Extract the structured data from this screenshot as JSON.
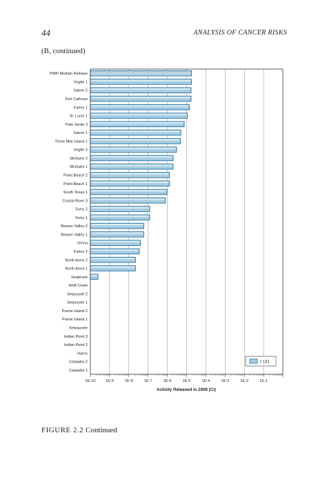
{
  "page": {
    "page_number": "44",
    "running_head": "ANALYSIS OF CANCER RISKS",
    "panel_label": "(B, continued)",
    "caption_label": "FIGURE 2.2",
    "caption_text": "Continued"
  },
  "chart_data": {
    "type": "bar",
    "orientation": "horizontal",
    "xscale": "log",
    "xlabel": "Activity Released in 2008 (Ci)",
    "xlim": [
      1e-10,
      1
    ],
    "xticks": [
      "1E-10",
      "1E-9",
      "1E-8",
      "1E-7",
      "1E-6",
      "1E-5",
      "1E-4",
      "1E-3",
      "1E-2",
      "1E-1"
    ],
    "grid": "vertical-major",
    "legend": {
      "position": "bottom-right",
      "label": "I-131"
    },
    "colors": {
      "bar_fill": "#a8cde3",
      "bar_stroke": "#1f6fa0",
      "bar_highlight": "#d8ebf5",
      "grid": "#888888"
    },
    "categories": [
      "PWR Median Release",
      "Vogtle 1",
      "Salem 2",
      "Fort Calhoun",
      "Farley 1",
      "St. Lucie 1",
      "Palo Verde 3",
      "Salem 1",
      "Three Mile Island 1",
      "Vogtle 2",
      "McGuire 2",
      "McGuire 1",
      "Point Beach 2",
      "Point Beach 1",
      "South Texas 1",
      "Crystal River 3",
      "Surry 2",
      "Surry 1",
      "Beaver Valley 2",
      "Beaver Valley 1",
      "Ginna",
      "Farley 2",
      "North Anna 2",
      "North Anna 1",
      "Seabrook",
      "Wolf Creek",
      "Sequoyah 2",
      "Sequoyah 1",
      "Prairie Island 2",
      "Prairie Island 1",
      "Kewaunee",
      "Indian Point 3",
      "Indian Point 2",
      "Harris",
      "Catawba 2",
      "Catawba 1"
    ],
    "series": [
      {
        "name": "I-131",
        "values": [
          1.8e-05,
          1.8e-05,
          1.7e-05,
          1.7e-05,
          1.4e-05,
          1.1e-05,
          7.5e-06,
          5e-06,
          4.8e-06,
          3e-06,
          2e-06,
          2e-06,
          1.3e-06,
          1.3e-06,
          9.5e-07,
          8e-07,
          1.2e-07,
          1.2e-07,
          6e-08,
          6e-08,
          4e-08,
          3.5e-08,
          2.2e-08,
          2.2e-08,
          2.5e-10,
          null,
          null,
          null,
          null,
          null,
          null,
          null,
          null,
          null,
          null,
          null
        ]
      }
    ],
    "highlighted_category": "PWR Median Release"
  }
}
